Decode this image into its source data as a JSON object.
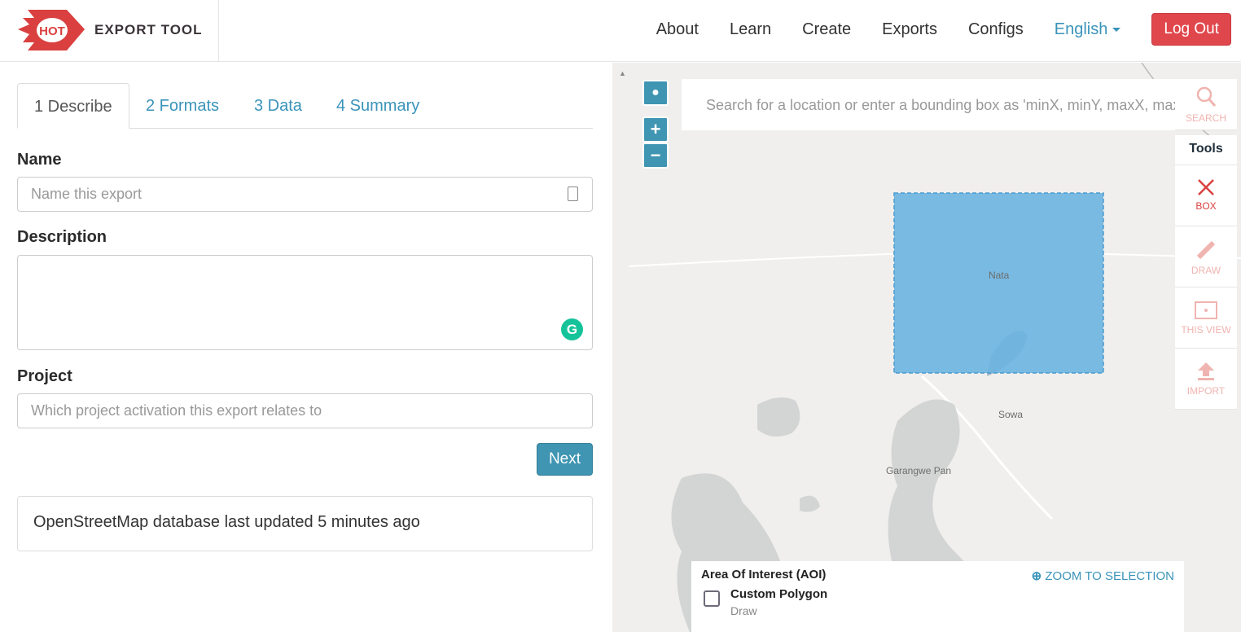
{
  "header": {
    "logo_badge": "HOT",
    "logo_text": "EXPORT TOOL",
    "nav": [
      {
        "label": "About"
      },
      {
        "label": "Learn"
      },
      {
        "label": "Create"
      },
      {
        "label": "Exports"
      },
      {
        "label": "Configs"
      }
    ],
    "language": "English",
    "logout": "Log Out",
    "brand_color": "#d9403f"
  },
  "tabs": [
    {
      "label": "1 Describe",
      "active": true
    },
    {
      "label": "2 Formats"
    },
    {
      "label": "3 Data"
    },
    {
      "label": "4 Summary"
    }
  ],
  "form": {
    "name_label": "Name",
    "name_placeholder": "Name this export",
    "description_label": "Description",
    "project_label": "Project",
    "project_placeholder": "Which project activation this export relates to",
    "next": "Next"
  },
  "status": "OpenStreetMap database last updated 5 minutes ago",
  "map": {
    "search_placeholder": "Search for a location or enter a bounding box as 'minX, minY, maxX, maxY'",
    "search_label": "SEARCH",
    "tools_title": "Tools",
    "tools": [
      {
        "label": "BOX",
        "icon": "x-icon",
        "active": true
      },
      {
        "label": "DRAW",
        "icon": "pencil-icon"
      },
      {
        "label": "THIS VIEW",
        "icon": "frame-icon"
      },
      {
        "label": "IMPORT",
        "icon": "upload-icon"
      }
    ],
    "places": [
      "Nata",
      "Sowa",
      "Garangwe Pan"
    ],
    "selection_color": "#6cb4e0"
  },
  "aoi": {
    "title": "Area Of Interest (AOI)",
    "zoom": "ZOOM TO SELECTION",
    "item": "Custom Polygon",
    "item_sub": "Draw"
  }
}
